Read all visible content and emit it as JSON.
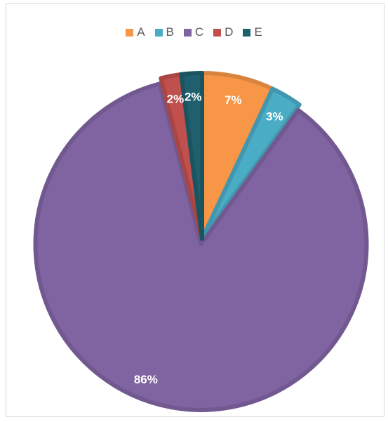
{
  "chart_data": {
    "type": "pie",
    "title": "",
    "legend_position": "top",
    "categories": [
      "A",
      "B",
      "C",
      "D",
      "E"
    ],
    "values": [
      7,
      3,
      86,
      2,
      2
    ],
    "labels": [
      "7%",
      "3%",
      "86%",
      "2%",
      "2%"
    ],
    "colors": [
      "#f79646",
      "#4bacc6",
      "#8064a2",
      "#c0504d",
      "#1f5f6e"
    ],
    "exploded": [
      "C"
    ]
  }
}
